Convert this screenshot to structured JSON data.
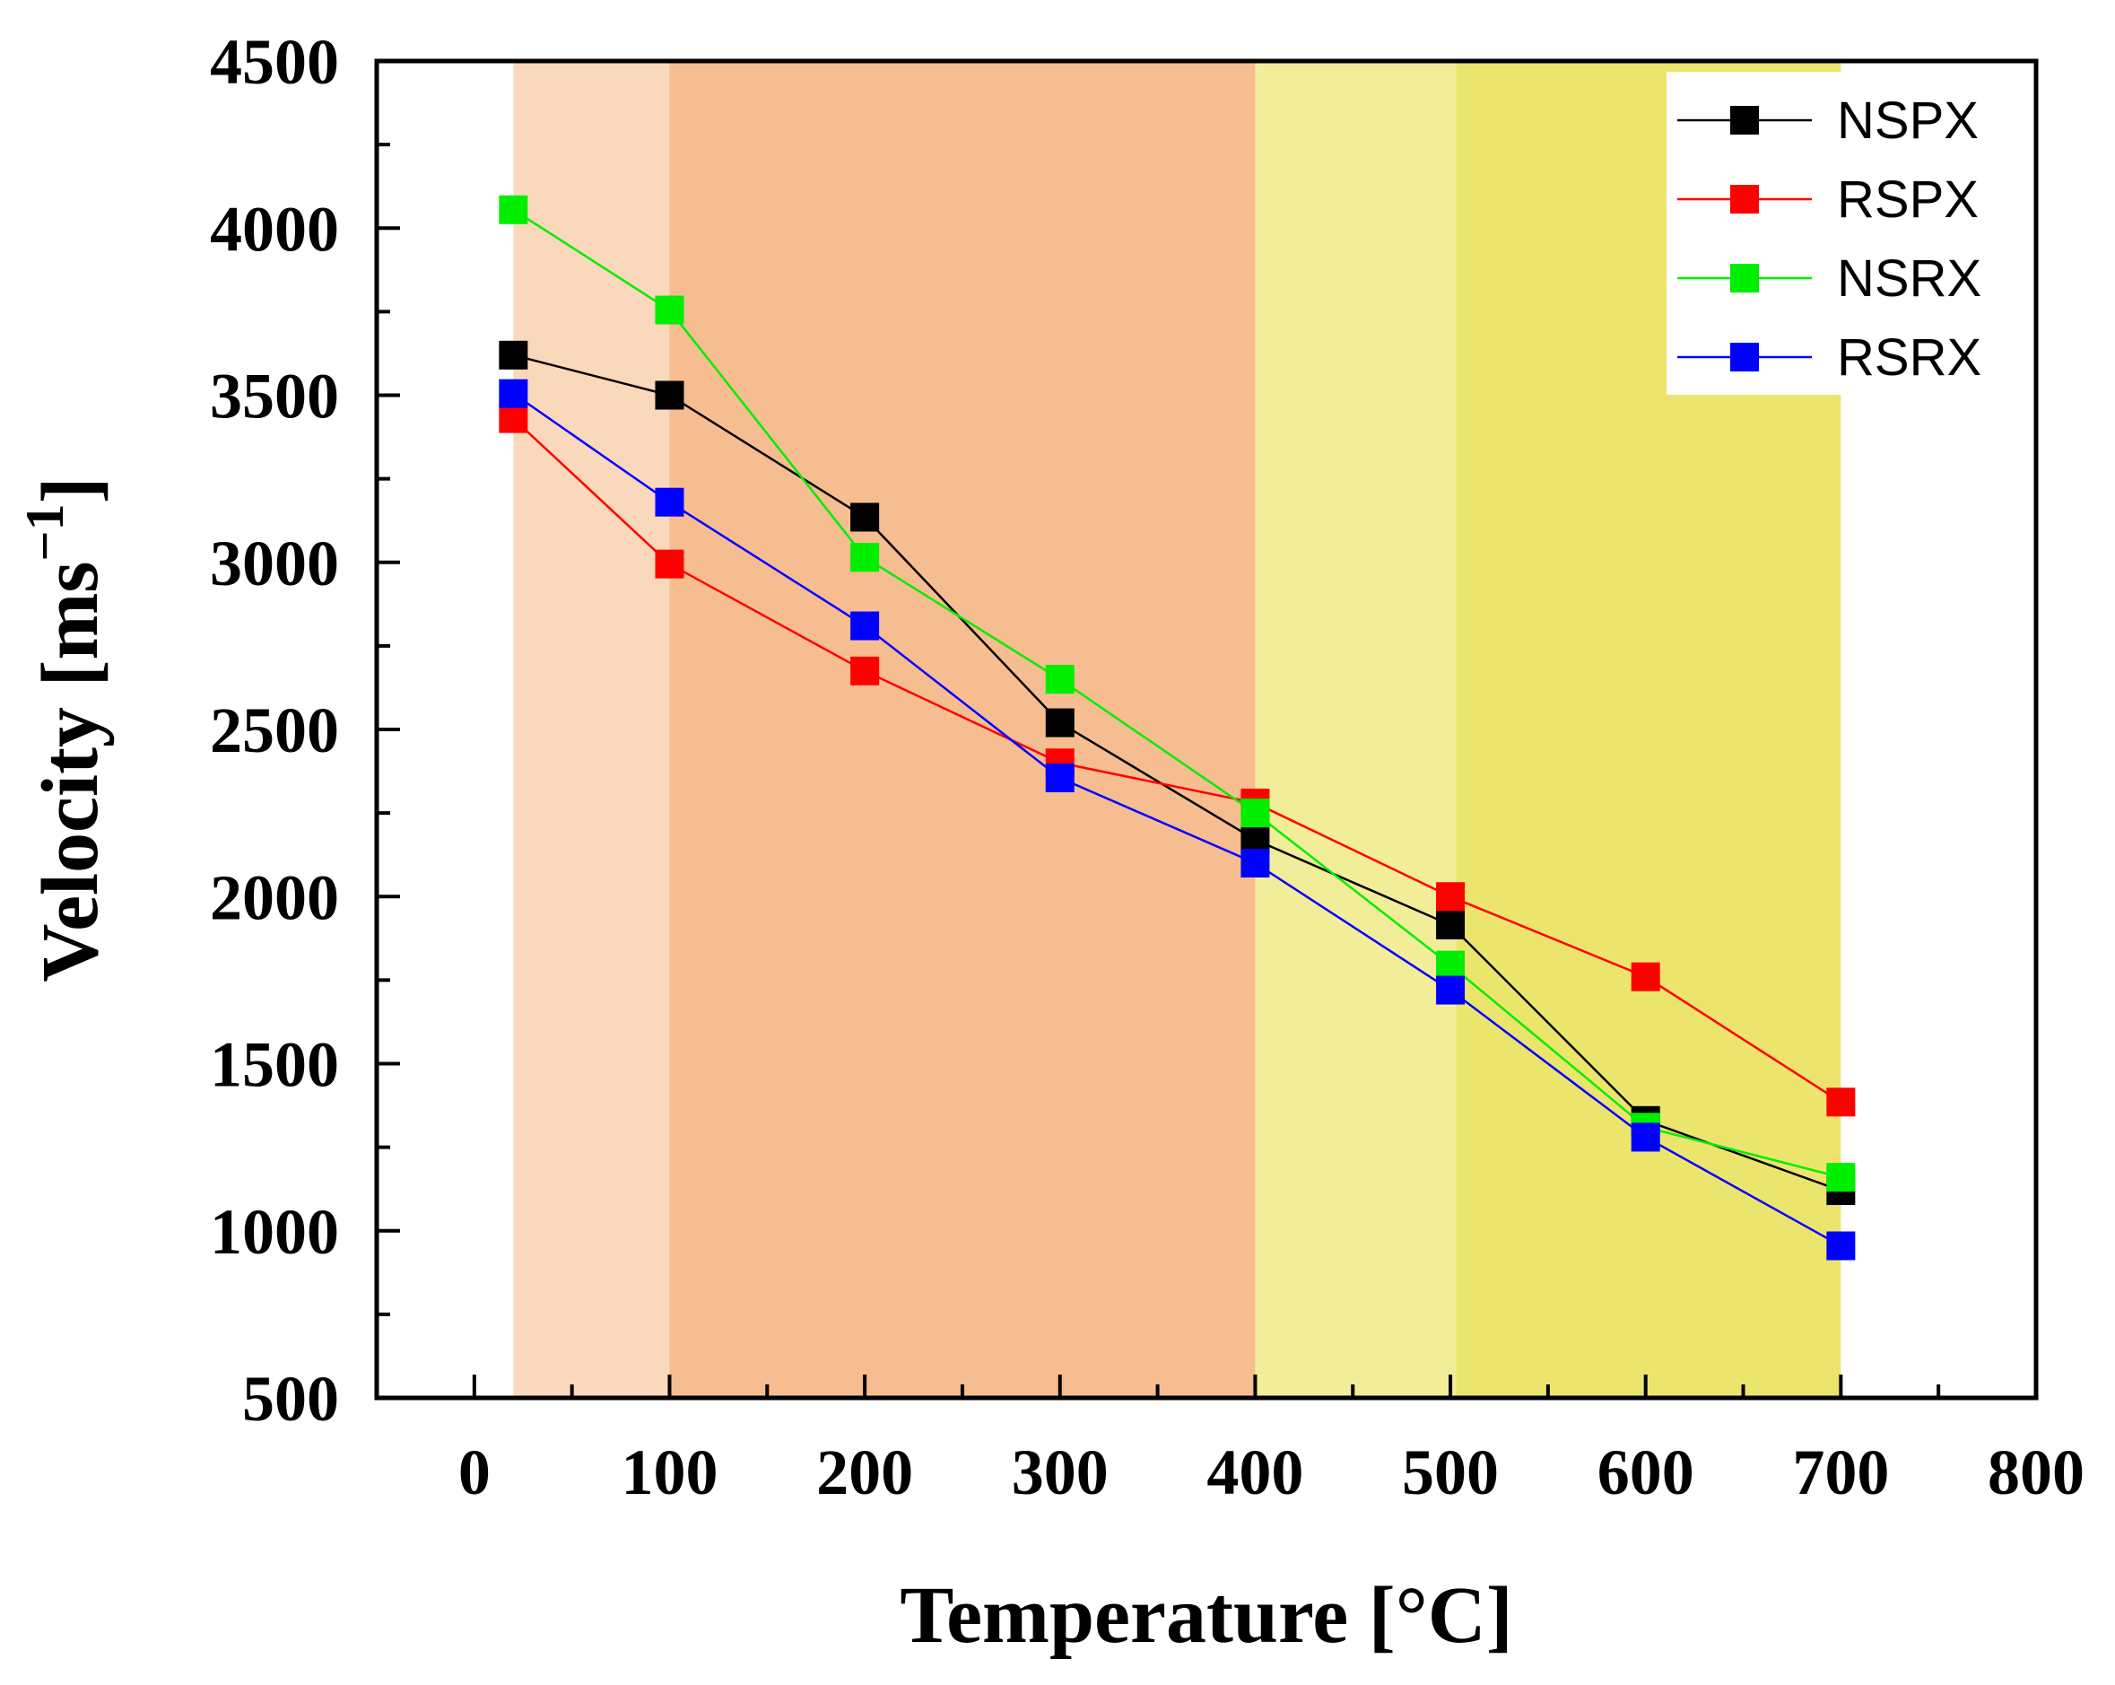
{
  "chart_data": {
    "type": "line",
    "title": "",
    "xlabel": "Temperature [°C]",
    "ylabel_main": "Velocity [ms",
    "ylabel_sup": "−1",
    "ylabel_close": "]",
    "xlim": [
      -50,
      800
    ],
    "ylim": [
      500,
      4500
    ],
    "x_ticks": [
      0,
      100,
      200,
      300,
      400,
      500,
      600,
      700,
      800
    ],
    "x_tick_labels": [
      "0",
      "100",
      "200",
      "300",
      "400",
      "500",
      "600",
      "700",
      "800"
    ],
    "y_ticks": [
      500,
      1000,
      1500,
      2000,
      2500,
      3000,
      3500,
      4000,
      4500
    ],
    "y_tick_labels": [
      "500",
      "1000",
      "1500",
      "2000",
      "2500",
      "3000",
      "3500",
      "4000",
      "4500"
    ],
    "grid": false,
    "legend_position": "top-right",
    "x": [
      20,
      100,
      200,
      300,
      400,
      500,
      600,
      700
    ],
    "bands": [
      {
        "from": 20,
        "to": 100,
        "color": "#fad8bc"
      },
      {
        "from": 100,
        "to": 400,
        "color": "#f6bd91"
      },
      {
        "from": 400,
        "to": 503,
        "color": "#f2ed99"
      },
      {
        "from": 503,
        "to": 700,
        "color": "#ece56d"
      }
    ],
    "series": [
      {
        "name": "NSPX",
        "color": "#000000",
        "values": [
          3620,
          3500,
          3135,
          2520,
          2170,
          1915,
          1330,
          1120
        ]
      },
      {
        "name": "RSPX",
        "color": "#ff0000",
        "values": [
          3430,
          2995,
          2675,
          2400,
          2280,
          2000,
          1760,
          1385
        ]
      },
      {
        "name": "NSRX",
        "color": "#00ee00",
        "values": [
          4055,
          3755,
          3015,
          2650,
          2250,
          1795,
          1310,
          1160
        ]
      },
      {
        "name": "RSRX",
        "color": "#0000ff",
        "values": [
          3505,
          3180,
          2810,
          2355,
          2100,
          1720,
          1280,
          955
        ]
      }
    ]
  }
}
